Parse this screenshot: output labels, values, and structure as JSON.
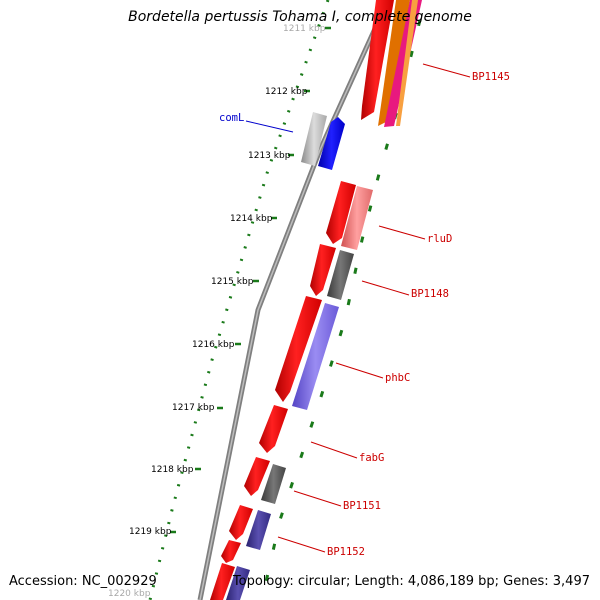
{
  "title": "Bordetella pertussis Tohama I, complete genome",
  "accession": "Accession: NC_002929",
  "topology": "Topology: circular; Length: 4,086,189 bp; Genes: 3,497",
  "scale_labels": [
    "1211 kbp",
    "1212 kbp",
    "1213 kbp",
    "1214 kbp",
    "1215 kbp",
    "1216 kbp",
    "1217 kbp",
    "1218 kbp",
    "1219 kbp",
    "1220 kbp"
  ],
  "gene_labels": [
    {
      "text": "BP1145",
      "color": "#cc0000"
    },
    {
      "text": "comL",
      "color": "#0000cc"
    },
    {
      "text": "rluD",
      "color": "#cc0000"
    },
    {
      "text": "BP1148",
      "color": "#cc0000"
    },
    {
      "text": "phbC",
      "color": "#cc0000"
    },
    {
      "text": "fabG",
      "color": "#cc0000"
    },
    {
      "text": "BP1151",
      "color": "#cc0000"
    },
    {
      "text": "BP1152",
      "color": "#cc0000"
    }
  ],
  "colors": {
    "backbone": "#808080",
    "scale_ticks": "#1a7a1a",
    "forward_cds": "#ff0000",
    "category_gray": "#666666",
    "category_blue": "#0000ff",
    "category_purple": "#7b68ee",
    "category_pink": "#f08080"
  }
}
